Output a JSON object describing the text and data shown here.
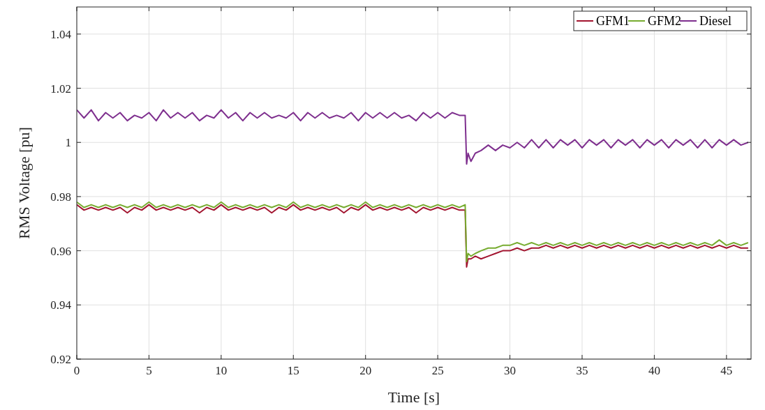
{
  "chart_data": {
    "type": "line",
    "xlabel": "Time [s]",
    "ylabel": "RMS Voltage [pu]",
    "x": [
      0,
      0.5,
      1,
      1.5,
      2,
      2.5,
      3,
      3.5,
      4,
      4.5,
      5,
      5.5,
      6,
      6.5,
      7,
      7.5,
      8,
      8.5,
      9,
      9.5,
      10,
      10.5,
      11,
      11.5,
      12,
      12.5,
      13,
      13.5,
      14,
      14.5,
      15,
      15.5,
      16,
      16.5,
      17,
      17.5,
      18,
      18.5,
      19,
      19.5,
      20,
      20.5,
      21,
      21.5,
      22,
      22.5,
      23,
      23.5,
      24,
      24.5,
      25,
      25.5,
      26,
      26.5,
      26.9,
      27,
      27.1,
      27.3,
      27.6,
      28,
      28.5,
      29,
      29.5,
      30,
      30.5,
      31,
      31.5,
      32,
      32.5,
      33,
      33.5,
      34,
      34.5,
      35,
      35.5,
      36,
      36.5,
      37,
      37.5,
      38,
      38.5,
      39,
      39.5,
      40,
      40.5,
      41,
      41.5,
      42,
      42.5,
      43,
      43.5,
      44,
      44.5,
      45,
      45.5,
      46,
      46.5
    ],
    "series": [
      {
        "name": "GFM1",
        "color": "#a2142f",
        "values": [
          0.977,
          0.975,
          0.976,
          0.975,
          0.976,
          0.975,
          0.976,
          0.974,
          0.976,
          0.975,
          0.977,
          0.975,
          0.976,
          0.975,
          0.976,
          0.975,
          0.976,
          0.974,
          0.976,
          0.975,
          0.977,
          0.975,
          0.976,
          0.975,
          0.976,
          0.975,
          0.976,
          0.974,
          0.976,
          0.975,
          0.977,
          0.975,
          0.976,
          0.975,
          0.976,
          0.975,
          0.976,
          0.974,
          0.976,
          0.975,
          0.977,
          0.975,
          0.976,
          0.975,
          0.976,
          0.975,
          0.976,
          0.974,
          0.976,
          0.975,
          0.976,
          0.975,
          0.976,
          0.975,
          0.975,
          0.954,
          0.957,
          0.957,
          0.958,
          0.957,
          0.958,
          0.959,
          0.96,
          0.96,
          0.961,
          0.96,
          0.961,
          0.961,
          0.962,
          0.961,
          0.962,
          0.961,
          0.962,
          0.961,
          0.962,
          0.961,
          0.962,
          0.961,
          0.962,
          0.961,
          0.962,
          0.961,
          0.962,
          0.961,
          0.962,
          0.961,
          0.962,
          0.961,
          0.962,
          0.961,
          0.962,
          0.961,
          0.962,
          0.961,
          0.962,
          0.961,
          0.961
        ]
      },
      {
        "name": "GFM2",
        "color": "#77ac30",
        "values": [
          0.978,
          0.976,
          0.977,
          0.976,
          0.977,
          0.976,
          0.977,
          0.976,
          0.977,
          0.976,
          0.978,
          0.976,
          0.977,
          0.976,
          0.977,
          0.976,
          0.977,
          0.976,
          0.977,
          0.976,
          0.978,
          0.976,
          0.977,
          0.976,
          0.977,
          0.976,
          0.977,
          0.976,
          0.977,
          0.976,
          0.978,
          0.976,
          0.977,
          0.976,
          0.977,
          0.976,
          0.977,
          0.976,
          0.977,
          0.976,
          0.978,
          0.976,
          0.977,
          0.976,
          0.977,
          0.976,
          0.977,
          0.976,
          0.977,
          0.976,
          0.977,
          0.976,
          0.977,
          0.976,
          0.977,
          0.956,
          0.959,
          0.958,
          0.959,
          0.96,
          0.961,
          0.961,
          0.962,
          0.962,
          0.963,
          0.962,
          0.963,
          0.962,
          0.963,
          0.962,
          0.963,
          0.962,
          0.963,
          0.962,
          0.963,
          0.962,
          0.963,
          0.962,
          0.963,
          0.962,
          0.963,
          0.962,
          0.963,
          0.962,
          0.963,
          0.962,
          0.963,
          0.962,
          0.963,
          0.962,
          0.963,
          0.962,
          0.964,
          0.962,
          0.963,
          0.962,
          0.963
        ]
      },
      {
        "name": "Diesel",
        "color": "#7e2f8e",
        "values": [
          1.012,
          1.009,
          1.012,
          1.008,
          1.011,
          1.009,
          1.011,
          1.008,
          1.01,
          1.009,
          1.011,
          1.008,
          1.012,
          1.009,
          1.011,
          1.009,
          1.011,
          1.008,
          1.01,
          1.009,
          1.012,
          1.009,
          1.011,
          1.008,
          1.011,
          1.009,
          1.011,
          1.009,
          1.01,
          1.009,
          1.011,
          1.008,
          1.011,
          1.009,
          1.011,
          1.009,
          1.01,
          1.009,
          1.011,
          1.008,
          1.011,
          1.009,
          1.011,
          1.009,
          1.011,
          1.009,
          1.01,
          1.008,
          1.011,
          1.009,
          1.011,
          1.009,
          1.011,
          1.01,
          1.01,
          0.992,
          0.996,
          0.993,
          0.996,
          0.997,
          0.999,
          0.997,
          0.999,
          0.998,
          1.0,
          0.998,
          1.001,
          0.998,
          1.001,
          0.998,
          1.001,
          0.999,
          1.001,
          0.998,
          1.001,
          0.999,
          1.001,
          0.998,
          1.001,
          0.999,
          1.001,
          0.998,
          1.001,
          0.999,
          1.001,
          0.998,
          1.001,
          0.999,
          1.001,
          0.998,
          1.001,
          0.998,
          1.001,
          0.999,
          1.001,
          0.999,
          1.0
        ]
      }
    ],
    "xlim": [
      0,
      46.7
    ],
    "xticks": [
      0,
      5,
      10,
      15,
      20,
      25,
      30,
      35,
      40,
      45
    ],
    "ylim": [
      0.92,
      1.05
    ],
    "yticks": [
      {
        "value": 0.92,
        "label": "0.92"
      },
      {
        "value": 0.94,
        "label": "0.94"
      },
      {
        "value": 0.96,
        "label": "0.96"
      },
      {
        "value": 0.98,
        "label": "0.98"
      },
      {
        "value": 1,
        "label": "1"
      },
      {
        "value": 1.02,
        "label": "1.02"
      },
      {
        "value": 1.04,
        "label": "1.04"
      }
    ],
    "grid": true,
    "legend": "top right",
    "line_style": "solid"
  }
}
